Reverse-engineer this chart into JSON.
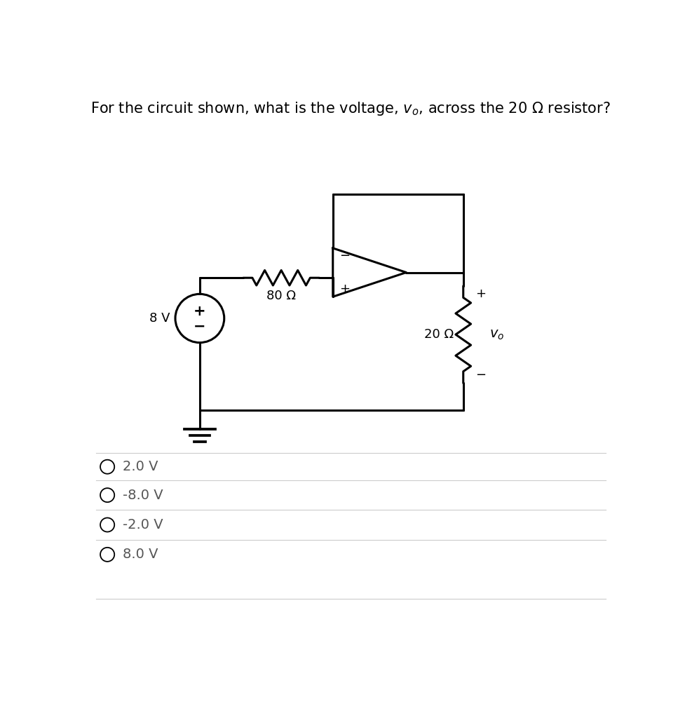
{
  "bg_color": "#ffffff",
  "line_color": "#000000",
  "line_width": 2.2,
  "choices": [
    "2.0 V",
    "-8.0 V",
    "-2.0 V",
    "8.0 V"
  ],
  "voltage_source_label": "8 V",
  "resistor1_label": "80 Ω",
  "resistor2_label": "20 Ω",
  "vo_label": "v_o",
  "font_size_title": 15,
  "font_size_labels": 13,
  "font_size_choices": 14,
  "separator_color": "#cccccc",
  "choice_text_color": "#555555"
}
